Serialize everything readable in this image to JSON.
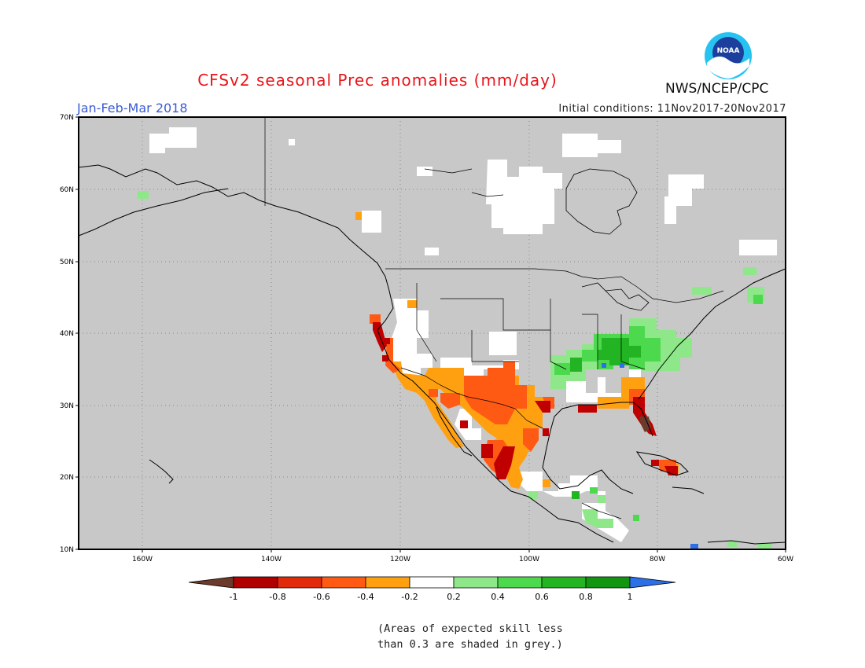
{
  "header": {
    "title": "CFSv2 seasonal Prec anomalies (mm/day)",
    "season": "Jan-Feb-Mar 2018",
    "initial_conditions": "Initial conditions: 11Nov2017-20Nov2017",
    "organization": "NWS/NCEP/CPC",
    "logo_text": "NOAA"
  },
  "axes": {
    "lat_labels": [
      "70N",
      "60N",
      "50N",
      "40N",
      "30N",
      "20N",
      "10N"
    ],
    "lon_labels": [
      "160W",
      "140W",
      "120W",
      "100W",
      "80W",
      "60W"
    ]
  },
  "colorbar": {
    "labels": [
      "-1",
      "-0.8",
      "-0.6",
      "-0.4",
      "-0.2",
      "0.2",
      "0.4",
      "0.6",
      "0.8",
      "1"
    ],
    "colors": [
      "#6b3a2b",
      "#b00000",
      "#e02a0a",
      "#ff5a14",
      "#ffa010",
      "#ffffff",
      "#8ee88a",
      "#4dd94d",
      "#22b422",
      "#129612",
      "#2d6fe6"
    ]
  },
  "note": {
    "line1": "(Areas of expected skill less",
    "line2": "than 0.3 are shaded in grey.)"
  },
  "colors": {
    "no_skill_grey": "#c8c8c8",
    "title_red": "#e8151a",
    "season_blue": "#3a5bd6"
  }
}
